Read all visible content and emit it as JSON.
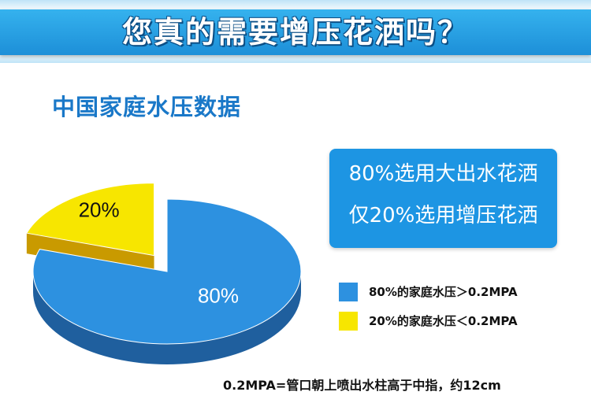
{
  "banner": {
    "title": "您真的需要增压花洒吗？"
  },
  "section_title": "中国家庭水压数据",
  "info_box": {
    "line1": "80%选用大出水花洒",
    "line2": "仅20%选用增压花洒"
  },
  "legend": [
    {
      "label": "80%的家庭水压＞0.2MPA",
      "color": "#2d91e0"
    },
    {
      "label": "20%的家庭水压＜0.2MPA",
      "color": "#f7e600"
    }
  ],
  "footnote": "0.2MPA=管口朝上喷出水柱高于中指，约12cm",
  "colors": {
    "blue": "#2d91e0",
    "blue_side": "#1f5f9e",
    "yellow": "#f7e600",
    "yellow_side": "#c99a00"
  },
  "chart_data": {
    "type": "pie",
    "title": "中国家庭水压数据",
    "categories": [
      "家庭水压＞0.2MPA",
      "家庭水压＜0.2MPA"
    ],
    "values": [
      80,
      20
    ],
    "labels": [
      "80%",
      "20%"
    ],
    "exploded": [
      false,
      true
    ],
    "style": "3d",
    "legend_position": "right"
  }
}
